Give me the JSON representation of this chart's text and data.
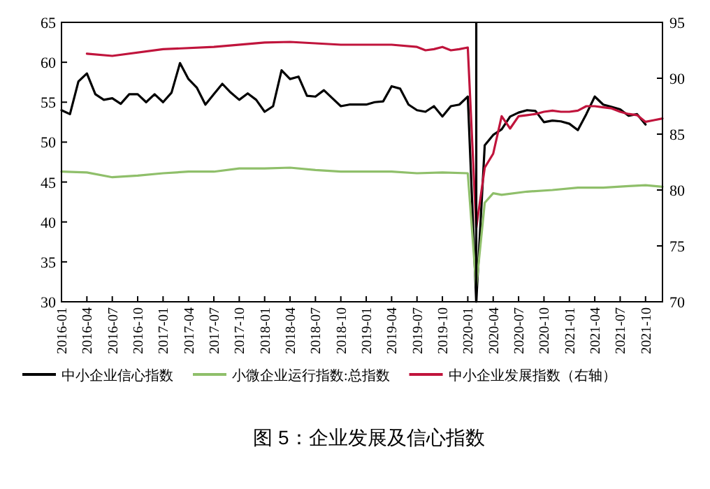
{
  "chart_data": {
    "type": "line",
    "title": "图 5：企业发展及信心指数",
    "x": [
      "2016-01",
      "2016-02",
      "2016-03",
      "2016-04",
      "2016-05",
      "2016-06",
      "2016-07",
      "2016-08",
      "2016-09",
      "2016-10",
      "2016-11",
      "2016-12",
      "2017-01",
      "2017-02",
      "2017-03",
      "2017-04",
      "2017-05",
      "2017-06",
      "2017-07",
      "2017-08",
      "2017-09",
      "2017-10",
      "2017-11",
      "2017-12",
      "2018-01",
      "2018-02",
      "2018-03",
      "2018-04",
      "2018-05",
      "2018-06",
      "2018-07",
      "2018-08",
      "2018-09",
      "2018-10",
      "2018-11",
      "2018-12",
      "2019-01",
      "2019-02",
      "2019-03",
      "2019-04",
      "2019-05",
      "2019-06",
      "2019-07",
      "2019-08",
      "2019-09",
      "2019-10",
      "2019-11",
      "2019-12",
      "2020-01",
      "2020-02",
      "2020-03",
      "2020-04",
      "2020-05",
      "2020-06",
      "2020-07",
      "2020-08",
      "2020-09",
      "2020-10",
      "2020-11",
      "2020-12",
      "2021-01",
      "2021-02",
      "2021-03",
      "2021-04",
      "2021-05",
      "2021-06",
      "2021-07",
      "2021-08",
      "2021-09",
      "2021-10"
    ],
    "series": [
      {
        "name": "中小企业信心指数",
        "color": "#000000",
        "values": [
          54.0,
          53.5,
          57.6,
          58.6,
          56.0,
          55.3,
          55.5,
          54.8,
          56.0,
          56.0,
          55.0,
          56.0,
          55.0,
          56.2,
          59.9,
          57.9,
          56.8,
          54.7,
          56.0,
          57.3,
          56.2,
          55.3,
          56.1,
          55.3,
          53.8,
          54.5,
          59.0,
          57.9,
          58.2,
          55.8,
          55.7,
          56.5,
          55.5,
          54.5,
          54.7,
          54.7,
          54.7,
          55.0,
          55.1,
          57.0,
          56.7,
          54.7,
          54.0,
          53.8,
          54.5,
          53.2,
          54.5,
          54.7,
          55.7,
          30,
          49.6,
          50.9,
          51.6,
          53.2,
          53.7,
          54.0,
          53.9,
          52.5,
          52.7,
          52.6,
          52.3,
          51.5,
          53.5,
          55.7,
          54.7,
          54.4,
          54.1,
          53.3,
          53.5,
          52.2
        ]
      },
      {
        "name": "小微企业运行指数:总指数",
        "color": "#8fbf6a",
        "x": [
          "2016-01",
          "2016-04",
          "2016-07",
          "2016-10",
          "2017-01",
          "2017-04",
          "2017-07",
          "2017-10",
          "2018-01",
          "2018-04",
          "2018-07",
          "2018-10",
          "2019-01",
          "2019-04",
          "2019-07",
          "2019-10",
          "2020-01",
          "2020-02",
          "2020-03",
          "2020-04",
          "2020-05",
          "2020-08",
          "2020-11",
          "2021-02",
          "2021-05",
          "2021-08",
          "2021-10",
          "2021-12"
        ],
        "values": [
          46.3,
          46.2,
          45.6,
          45.8,
          46.1,
          46.3,
          46.3,
          46.7,
          46.7,
          46.8,
          46.5,
          46.3,
          46.3,
          46.3,
          46.1,
          46.2,
          46.1,
          31.9,
          42.4,
          43.6,
          43.4,
          43.8,
          44.0,
          44.3,
          44.3,
          44.5,
          44.6,
          44.4
        ]
      },
      {
        "name": "中小企业发展指数（右轴）",
        "color": "#c0143c",
        "axis": "y2",
        "x": [
          "2016-04",
          "2016-07",
          "2017-01",
          "2017-07",
          "2018-01",
          "2018-04",
          "2018-10",
          "2019-01",
          "2019-04",
          "2019-07",
          "2019-08",
          "2019-09",
          "2019-10",
          "2019-11",
          "2019-12",
          "2020-01",
          "2020-02",
          "2020-03",
          "2020-04",
          "2020-05",
          "2020-06",
          "2020-07",
          "2020-08",
          "2020-09",
          "2020-10",
          "2020-11",
          "2020-12",
          "2021-01",
          "2021-02",
          "2021-03",
          "2021-04",
          "2021-05",
          "2021-06",
          "2021-07",
          "2021-08",
          "2021-09",
          "2021-10",
          "2021-11",
          "2021-12"
        ],
        "values": [
          92.2,
          92.0,
          92.6,
          92.8,
          93.2,
          93.25,
          93.0,
          93.0,
          93.0,
          92.8,
          92.5,
          92.6,
          92.8,
          92.5,
          92.6,
          92.75,
          76.6,
          82.0,
          83.25,
          86.6,
          85.5,
          86.6,
          86.7,
          86.8,
          87.0,
          87.1,
          87.0,
          87.0,
          87.1,
          87.5,
          87.5,
          87.4,
          87.3,
          87.0,
          86.8,
          86.7,
          86.1,
          86.25,
          86.4
        ]
      }
    ],
    "xlim": [
      "2016-01",
      "2021-12"
    ],
    "xticks": [
      "2016-01",
      "2016-04",
      "2016-07",
      "2016-10",
      "2017-01",
      "2017-04",
      "2017-07",
      "2017-10",
      "2018-01",
      "2018-04",
      "2018-07",
      "2018-10",
      "2019-01",
      "2019-04",
      "2019-07",
      "2019-10",
      "2020-01",
      "2020-04",
      "2020-07",
      "2020-10",
      "2021-01",
      "2021-04",
      "2021-07",
      "2021-10"
    ],
    "ylim": [
      30,
      65
    ],
    "yticks": [
      30,
      35,
      40,
      45,
      50,
      55,
      60,
      65
    ],
    "y2lim": [
      70,
      95
    ],
    "y2ticks": [
      70,
      75,
      80,
      85,
      90,
      95
    ],
    "ref_lines": [
      {
        "axis": "x",
        "value": "2020-02",
        "color": "#000000"
      }
    ],
    "legend": "bottom",
    "grid": false,
    "marker": "none",
    "line_style": "solid"
  }
}
